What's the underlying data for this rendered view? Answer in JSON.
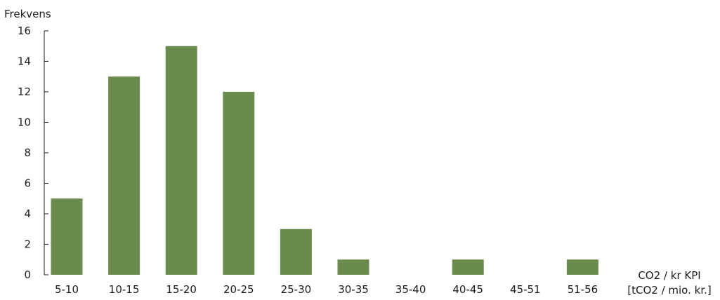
{
  "chart_data": {
    "type": "bar",
    "categories": [
      "5-10",
      "10-15",
      "15-20",
      "20-25",
      "25-30",
      "30-35",
      "35-40",
      "40-45",
      "45-51",
      "51-56"
    ],
    "values": [
      5,
      13,
      15,
      12,
      3,
      1,
      0,
      1,
      0,
      1
    ],
    "ylabel": "Frekvens",
    "xlabel_line1": "CO2 / kr KPI",
    "xlabel_line2": "[tCO2 / mio. kr.]",
    "ylim": [
      0,
      16
    ],
    "yticks": [
      0,
      2,
      4,
      6,
      8,
      10,
      12,
      14,
      16
    ],
    "bar_color": "#6b8a4e",
    "axis_color": "#1c1c1c",
    "grid": false,
    "legend": "none"
  }
}
